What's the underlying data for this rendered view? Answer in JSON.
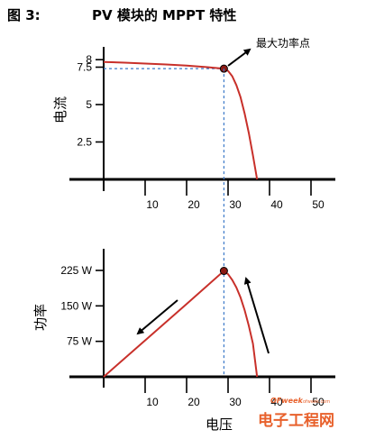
{
  "figure_label": "图 3:",
  "figure_title": "PV 模块的 MPPT 特性",
  "annotation": "最大功率点",
  "x_axis_label": "电压",
  "watermark": {
    "brand": "OFweek",
    "site": "ofweek.com",
    "name": "电子工程网"
  },
  "colors": {
    "curve": "#c8302a",
    "dashed": "#3a78c8",
    "axis": "#000000",
    "watermark": "#e8612c"
  },
  "chart_data": [
    {
      "type": "line",
      "ylabel": "电流",
      "xlabel": "",
      "xlim": [
        0,
        50
      ],
      "ylim": [
        0,
        8
      ],
      "x_ticks": [
        10,
        20,
        30,
        40,
        50
      ],
      "x_tick_labels": [
        "10",
        "20",
        "30",
        "40",
        "50"
      ],
      "y_ticks": [
        2.5,
        5,
        7.5,
        8
      ],
      "y_tick_labels": [
        "2.5",
        "5",
        "7.5",
        "8"
      ],
      "series": [
        {
          "x": [
            0,
            5,
            10,
            15,
            20,
            25,
            29,
            30,
            31,
            32,
            33,
            34,
            35,
            36,
            37
          ],
          "y": [
            7.85,
            7.8,
            7.74,
            7.68,
            7.6,
            7.5,
            7.4,
            7.25,
            6.9,
            6.3,
            5.5,
            4.4,
            3.1,
            1.6,
            0
          ]
        }
      ],
      "max_power_point": {
        "x": 29,
        "y": 7.4
      }
    },
    {
      "type": "line",
      "ylabel": "功率",
      "xlabel": "电压",
      "xlim": [
        0,
        50
      ],
      "ylim": [
        0,
        225
      ],
      "x_ticks": [
        10,
        20,
        30,
        40,
        50
      ],
      "x_tick_labels": [
        "10",
        "20",
        "30",
        "40",
        "50"
      ],
      "y_ticks": [
        75,
        150,
        225
      ],
      "y_tick_labels": [
        "75 W",
        "150 W",
        "225 W"
      ],
      "series": [
        {
          "x": [
            0,
            10,
            20,
            29,
            30,
            31,
            32,
            33,
            34,
            35,
            36,
            37
          ],
          "y": [
            0,
            77,
            154,
            224,
            217,
            205,
            189,
            168,
            141,
            108,
            70,
            0
          ]
        }
      ],
      "max_power_point": {
        "x": 29,
        "y": 224
      }
    }
  ]
}
